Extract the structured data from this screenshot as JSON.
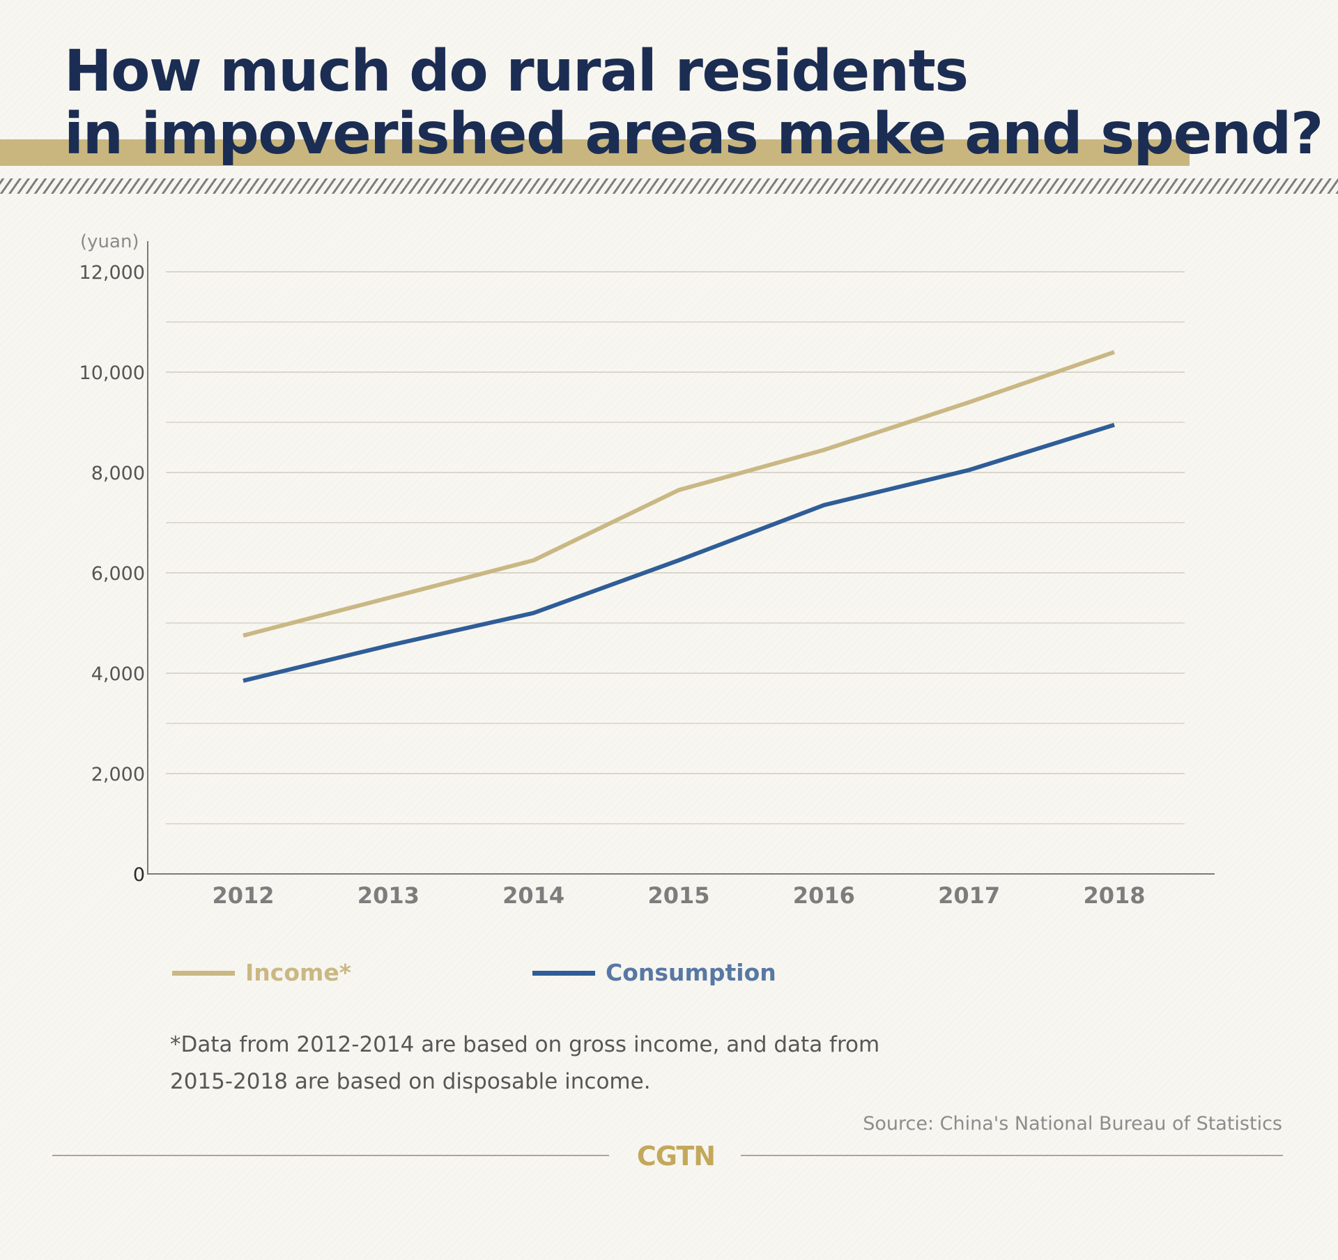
{
  "title": {
    "line1": "How much do rural residents",
    "line2": "in impoverished areas make and spend?"
  },
  "colors": {
    "navy": "#1b2d52",
    "gold": "#c8b67e",
    "income": "#c9b884",
    "consumption": "#2f5d97",
    "consumption_label": "#5878a4",
    "brand": "#c3a85c"
  },
  "chart_data": {
    "type": "line",
    "unit_label": "(yuan)",
    "categories": [
      "2012",
      "2013",
      "2014",
      "2015",
      "2016",
      "2017",
      "2018"
    ],
    "series": [
      {
        "name": "Income*",
        "color": "#c9b884",
        "values": [
          4750,
          5500,
          6250,
          7650,
          8450,
          9400,
          10400
        ]
      },
      {
        "name": "Consumption",
        "color": "#2f5d97",
        "values": [
          3850,
          4550,
          5200,
          6250,
          7350,
          8050,
          8950
        ]
      }
    ],
    "ylim": [
      0,
      12000
    ],
    "yticks": [
      0,
      2000,
      4000,
      6000,
      8000,
      10000,
      12000
    ],
    "ytick_labels": [
      "0",
      "2,000",
      "4,000",
      "6,000",
      "8,000",
      "10,000",
      "12,000"
    ],
    "minor_gridlines": [
      1000,
      3000,
      5000,
      7000,
      9000,
      11000
    ],
    "grid": true,
    "legend_position": "bottom"
  },
  "footnote": {
    "line1": "*Data from 2012-2014 are based on gross income, and data from",
    "line2": "2015-2018 are based on disposable income."
  },
  "source": "Source: China's National Bureau of Statistics",
  "brand": "CGTN"
}
